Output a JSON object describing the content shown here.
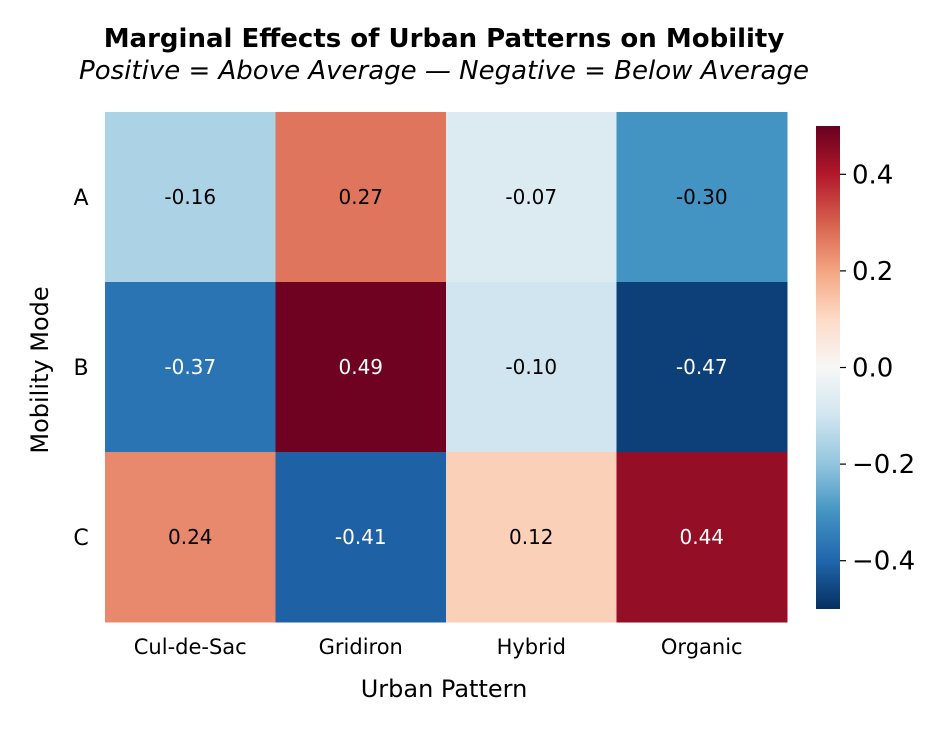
{
  "chart_data": {
    "type": "heatmap",
    "title": "Marginal Effects of Urban Patterns on Mobility",
    "subtitle": "Positive = Above Average — Negative = Below Average",
    "xlabel": "Urban Pattern",
    "ylabel": "Mobility Mode",
    "x_categories": [
      "Cul-de-Sac",
      "Gridiron",
      "Hybrid",
      "Organic"
    ],
    "y_categories": [
      "A",
      "B",
      "C"
    ],
    "values": [
      [
        -0.16,
        0.27,
        -0.07,
        -0.3
      ],
      [
        -0.37,
        0.49,
        -0.1,
        -0.47
      ],
      [
        0.24,
        -0.41,
        0.12,
        0.44
      ]
    ],
    "value_labels": [
      [
        "-0.16",
        "0.27",
        "-0.07",
        "-0.30"
      ],
      [
        "-0.37",
        "0.49",
        "-0.10",
        "-0.47"
      ],
      [
        "0.24",
        "-0.41",
        "0.12",
        "0.44"
      ]
    ],
    "colormap": "RdBu_r (diverging, blue = negative, red = positive)",
    "vmin": -0.5,
    "vmax": 0.5,
    "colorbar": {
      "ticks": [
        0.4,
        0.2,
        0.0,
        -0.2,
        -0.4
      ],
      "tick_labels": [
        "0.4",
        "0.2",
        "0.0",
        "−0.2",
        "−0.4"
      ],
      "placement": "right"
    },
    "grid": false,
    "legend": "none"
  }
}
